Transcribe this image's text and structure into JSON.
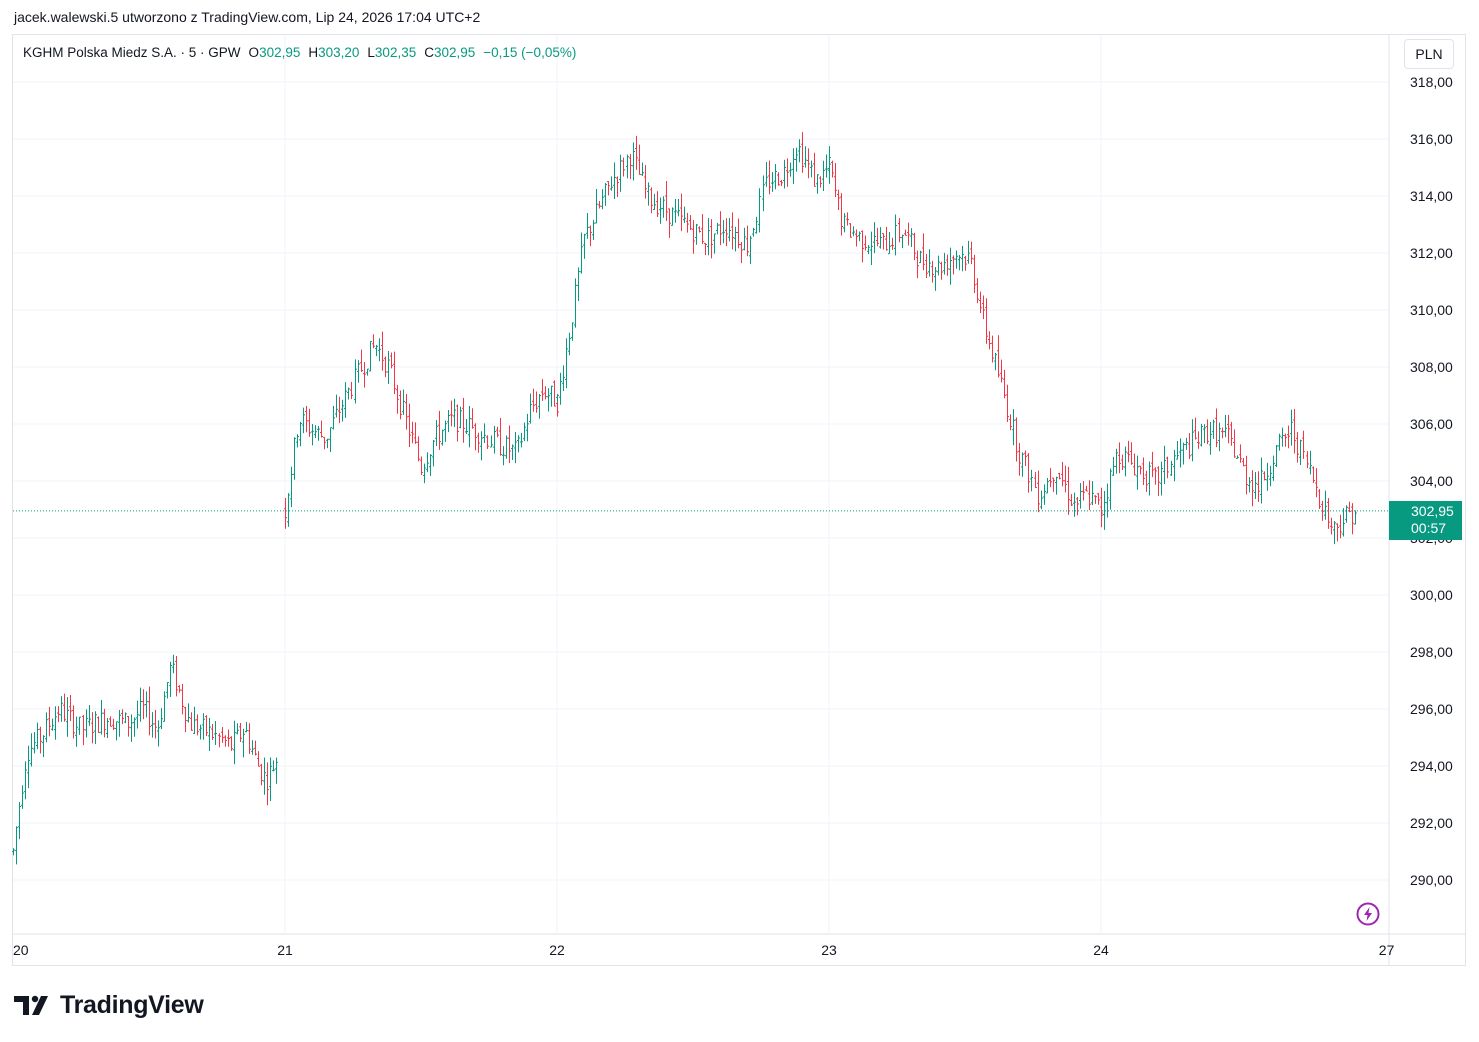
{
  "caption": "jacek.walewski.5 utworzono z TradingView.com, Lip 24, 2026 17:04 UTC+2",
  "legend": {
    "symbol": "KGHM Polska Miedz S.A. · 5 · GPW",
    "open_label": "O",
    "open": "302,95",
    "high_label": "H",
    "high": "303,20",
    "low_label": "L",
    "low": "302,35",
    "close_label": "C",
    "close": "302,95",
    "change": "−0,15 (−0,05%)"
  },
  "currency": "PLN",
  "last_price_tag": {
    "price": "302,95",
    "countdown": "00:57"
  },
  "logo_text": "TradingView",
  "colors": {
    "up": "#089981",
    "down": "#f23645",
    "flash_icon": "#9c27b0",
    "text": "#131722",
    "grid": "#f0f3fa"
  },
  "icons": {
    "flash": "lightning-bolt-icon",
    "logo": "tradingview-logo-icon"
  },
  "chart_data": {
    "type": "ohlc",
    "interval": "5",
    "ylim": [
      288,
      319
    ],
    "y_ticks": [
      "318,00",
      "316,00",
      "314,00",
      "312,00",
      "310,00",
      "308,00",
      "306,00",
      "304,00",
      "302,00",
      "300,00",
      "298,00",
      "296,00",
      "294,00",
      "292,00",
      "290,00"
    ],
    "y_tick_values": [
      318,
      316,
      314,
      312,
      310,
      308,
      306,
      304,
      302,
      300,
      298,
      296,
      294,
      292,
      290
    ],
    "x_ticks": [
      "20",
      "21",
      "22",
      "23",
      "24",
      "27"
    ],
    "x_domain": [
      0,
      5.05
    ],
    "x_tick_positions": [
      0,
      1,
      2,
      3,
      4,
      5.05
    ],
    "last_price": 302.95,
    "days": [
      {
        "day": 20,
        "start": 0.0,
        "end": 1.0,
        "path": [
          [
            0.0,
            291.0
          ],
          [
            0.02,
            292.5
          ],
          [
            0.05,
            294.5
          ],
          [
            0.1,
            295.0
          ],
          [
            0.17,
            296.0
          ],
          [
            0.25,
            295.3
          ],
          [
            0.35,
            295.7
          ],
          [
            0.42,
            295.5
          ],
          [
            0.48,
            296.0
          ],
          [
            0.53,
            295.3
          ],
          [
            0.58,
            297.5
          ],
          [
            0.65,
            295.5
          ],
          [
            0.72,
            295.2
          ],
          [
            0.8,
            294.7
          ],
          [
            0.85,
            295.3
          ],
          [
            0.9,
            294.0
          ],
          [
            0.93,
            293.5
          ],
          [
            0.97,
            294.3
          ]
        ]
      },
      {
        "day": 21,
        "start": 1.0,
        "end": 2.0,
        "path": [
          [
            1.0,
            303.0
          ],
          [
            1.05,
            306.2
          ],
          [
            1.1,
            305.8
          ],
          [
            1.15,
            305.5
          ],
          [
            1.2,
            306.5
          ],
          [
            1.28,
            308.0
          ],
          [
            1.33,
            308.8
          ],
          [
            1.38,
            308.0
          ],
          [
            1.43,
            306.5
          ],
          [
            1.5,
            304.5
          ],
          [
            1.55,
            305.5
          ],
          [
            1.62,
            306.2
          ],
          [
            1.7,
            305.8
          ],
          [
            1.78,
            305.3
          ],
          [
            1.85,
            305.0
          ],
          [
            1.9,
            306.5
          ],
          [
            1.95,
            307.2
          ],
          [
            2.0,
            306.8
          ]
        ]
      },
      {
        "day": 22,
        "start": 2.0,
        "end": 3.0,
        "path": [
          [
            2.0,
            306.8
          ],
          [
            2.05,
            309.5
          ],
          [
            2.1,
            312.5
          ],
          [
            2.15,
            313.5
          ],
          [
            2.2,
            314.5
          ],
          [
            2.27,
            315.5
          ],
          [
            2.33,
            314.0
          ],
          [
            2.4,
            313.5
          ],
          [
            2.47,
            313.0
          ],
          [
            2.55,
            312.5
          ],
          [
            2.62,
            313.0
          ],
          [
            2.7,
            312.3
          ],
          [
            2.77,
            314.5
          ],
          [
            2.83,
            314.8
          ],
          [
            2.88,
            315.8
          ],
          [
            2.95,
            314.5
          ],
          [
            3.0,
            315.0
          ]
        ]
      },
      {
        "day": 23,
        "start": 3.0,
        "end": 4.0,
        "path": [
          [
            3.0,
            315.0
          ],
          [
            3.05,
            313.0
          ],
          [
            3.12,
            312.5
          ],
          [
            3.2,
            312.3
          ],
          [
            3.27,
            312.8
          ],
          [
            3.33,
            311.8
          ],
          [
            3.4,
            311.5
          ],
          [
            3.47,
            312.0
          ],
          [
            3.52,
            311.8
          ],
          [
            3.57,
            309.5
          ],
          [
            3.63,
            307.5
          ],
          [
            3.7,
            305.0
          ],
          [
            3.77,
            303.5
          ],
          [
            3.83,
            304.5
          ],
          [
            3.9,
            303.2
          ],
          [
            3.95,
            303.5
          ],
          [
            4.0,
            303.0
          ]
        ]
      },
      {
        "day": 24,
        "start": 4.0,
        "end": 5.0,
        "path": [
          [
            4.0,
            303.0
          ],
          [
            4.06,
            305.0
          ],
          [
            4.13,
            304.5
          ],
          [
            4.2,
            304.0
          ],
          [
            4.27,
            304.8
          ],
          [
            4.33,
            305.3
          ],
          [
            4.4,
            305.8
          ],
          [
            4.47,
            305.5
          ],
          [
            4.53,
            304.2
          ],
          [
            4.58,
            303.8
          ],
          [
            4.64,
            305.0
          ],
          [
            4.7,
            305.8
          ],
          [
            4.76,
            304.5
          ],
          [
            4.8,
            303.5
          ],
          [
            4.85,
            302.3
          ],
          [
            4.9,
            302.8
          ],
          [
            4.94,
            303.0
          ]
        ]
      }
    ]
  }
}
